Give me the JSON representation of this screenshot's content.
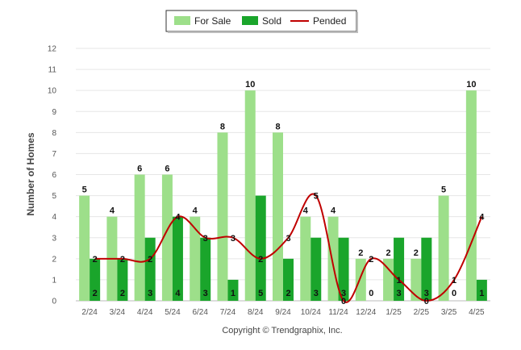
{
  "chart_data": {
    "type": "bar",
    "categories": [
      "2/24",
      "3/24",
      "4/24",
      "5/24",
      "6/24",
      "7/24",
      "8/24",
      "9/24",
      "10/24",
      "11/24",
      "12/24",
      "1/25",
      "2/25",
      "3/25",
      "4/25"
    ],
    "series": [
      {
        "name": "For Sale",
        "type": "bar",
        "color": "#9ddf8a",
        "values": [
          5,
          4,
          6,
          6,
          4,
          8,
          10,
          8,
          4,
          4,
          2,
          2,
          2,
          5,
          10
        ]
      },
      {
        "name": "Sold",
        "type": "bar",
        "color": "#1aa52b",
        "values": [
          2,
          2,
          3,
          4,
          3,
          1,
          5,
          2,
          3,
          3,
          0,
          3,
          3,
          0,
          1
        ]
      },
      {
        "name": "Pended",
        "type": "line",
        "color": "#c00000",
        "values": [
          2,
          2,
          2,
          4,
          3,
          3,
          2,
          3,
          5,
          0,
          2,
          1,
          0,
          1,
          4
        ]
      }
    ],
    "ylabel": "Number of Homes",
    "xlabel": "",
    "ylim": [
      0,
      12
    ],
    "yticks": [
      0,
      1,
      2,
      3,
      4,
      5,
      6,
      7,
      8,
      9,
      10,
      11,
      12
    ],
    "grid": true,
    "legend_position": "top-center"
  },
  "footer": {
    "credit": "Copyright © Trendgraphix, Inc."
  }
}
